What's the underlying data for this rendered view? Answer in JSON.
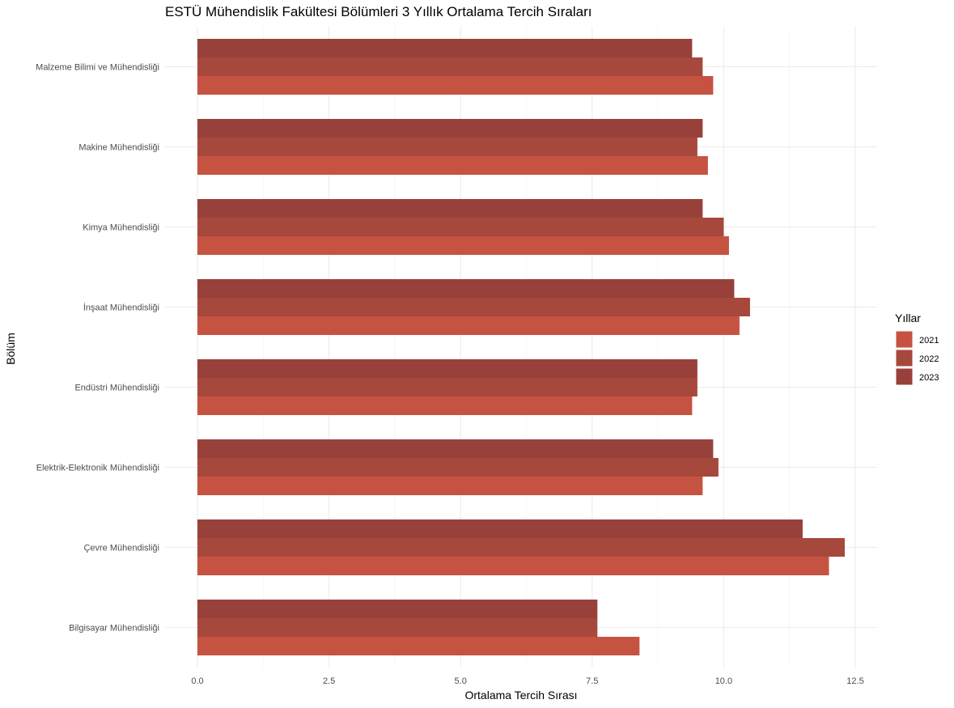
{
  "chart_data": {
    "type": "bar",
    "orientation": "horizontal",
    "title": "ESTÜ Mühendislik Fakültesi Bölümleri 3 Yıllık Ortalama Tercih Sıraları",
    "xlabel": "Ortalama Tercih Sırası",
    "ylabel": "Bölüm",
    "xlim": [
      0,
      12.8
    ],
    "x_ticks": [
      "0.0",
      "2.5",
      "5.0",
      "7.5",
      "10.0",
      "12.5"
    ],
    "x_tick_values": [
      0,
      2.5,
      5,
      7.5,
      10,
      12.5
    ],
    "grid": true,
    "legend": {
      "title": "Yıllar",
      "placement": "right"
    },
    "categories": [
      "Malzeme Bilimi ve Mühendisliği",
      "Makine Mühendisliği",
      "Kimya Mühendisliği",
      "İnşaat Mühendisliği",
      "Endüstri Mühendisliği",
      "Elektrik-Elektronik Mühendisliği",
      "Çevre Mühendisliği",
      "Bilgisayar Mühendisliği"
    ],
    "series": [
      {
        "name": "2021",
        "color": "#c65342",
        "values": [
          9.8,
          9.7,
          10.1,
          10.3,
          9.4,
          9.6,
          12.0,
          8.4
        ]
      },
      {
        "name": "2022",
        "color": "#a7483c",
        "values": [
          9.6,
          9.5,
          10.0,
          10.5,
          9.5,
          9.9,
          12.3,
          7.6
        ]
      },
      {
        "name": "2023",
        "color": "#98413b",
        "values": [
          9.4,
          9.6,
          9.6,
          10.2,
          9.5,
          9.8,
          11.5,
          7.6
        ]
      }
    ]
  }
}
